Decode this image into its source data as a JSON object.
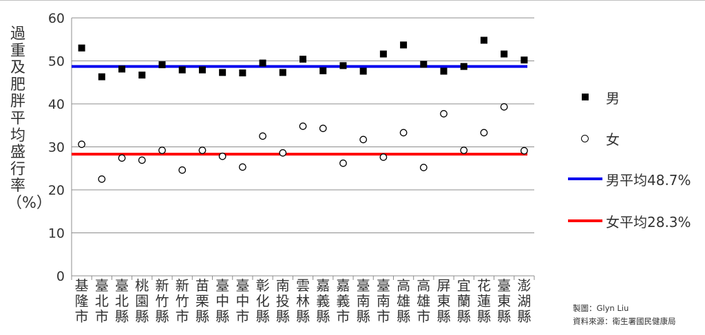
{
  "chart_data": {
    "type": "scatter",
    "ylabel": "過重及肥胖平均盛行率（%）",
    "ylim": [
      0,
      60
    ],
    "yticks": [
      0,
      10,
      20,
      30,
      40,
      50,
      60
    ],
    "grid": true,
    "legend_position": "right",
    "categories": [
      "基隆市",
      "臺北市",
      "臺北縣",
      "桃園縣",
      "新竹縣",
      "新竹市",
      "苗栗縣",
      "臺中縣",
      "臺中市",
      "彰化縣",
      "南投縣",
      "雲林縣",
      "嘉義縣",
      "嘉義市",
      "臺南縣",
      "臺南市",
      "高雄縣",
      "高雄市",
      "屏東縣",
      "宜蘭縣",
      "花蓮縣",
      "臺東縣",
      "澎湖縣"
    ],
    "series": [
      {
        "name": "男",
        "marker": "square-filled",
        "color": "#000000",
        "values": [
          53.0,
          46.3,
          48.1,
          46.7,
          49.1,
          47.9,
          47.9,
          47.3,
          47.2,
          49.5,
          47.3,
          50.4,
          47.7,
          48.9,
          47.6,
          51.6,
          53.7,
          49.2,
          47.6,
          48.7,
          54.8,
          51.6,
          50.2
        ]
      },
      {
        "name": "女",
        "marker": "circle-open",
        "color": "#000000",
        "values": [
          30.6,
          22.5,
          27.4,
          26.9,
          29.2,
          24.6,
          29.2,
          27.8,
          25.3,
          32.5,
          28.6,
          34.8,
          34.3,
          26.2,
          31.7,
          27.6,
          33.3,
          25.2,
          37.7,
          29.2,
          33.3,
          39.3,
          29.1
        ]
      }
    ],
    "reference_lines": [
      {
        "name": "男平均48.7%",
        "value": 48.7,
        "color": "#0000ee"
      },
      {
        "name": "女平均28.3%",
        "value": 28.3,
        "color": "#ff0000"
      }
    ]
  },
  "credits": {
    "author": "製圖：Glyn Liu",
    "source": "資料來源：衛生署國民健康局"
  }
}
